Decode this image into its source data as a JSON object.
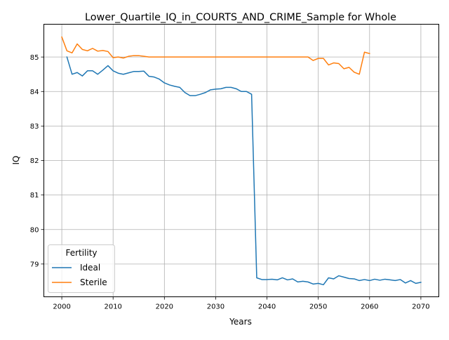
{
  "chart_data": {
    "type": "line",
    "title": "Lower_Quartile_IQ_in_COURTS_AND_CRIME_Sample for Whole",
    "xlabel": "Years",
    "ylabel": "IQ",
    "xlim": [
      1996.5,
      2073.5
    ],
    "ylim": [
      78.05,
      85.95
    ],
    "xticks": [
      2000,
      2010,
      2020,
      2030,
      2040,
      2050,
      2060,
      2070
    ],
    "yticks": [
      79,
      80,
      81,
      82,
      83,
      84,
      85
    ],
    "grid": true,
    "legend": {
      "title": "Fertility",
      "placement": "lower-left"
    },
    "series": [
      {
        "name": "Ideal",
        "color": "#1f77b4",
        "x": [
          2001,
          2002,
          2003,
          2004,
          2005,
          2006,
          2007,
          2008,
          2009,
          2010,
          2011,
          2012,
          2013,
          2014,
          2015,
          2016,
          2017,
          2018,
          2019,
          2020,
          2021,
          2022,
          2023,
          2024,
          2025,
          2026,
          2027,
          2028,
          2029,
          2030,
          2031,
          2032,
          2033,
          2034,
          2035,
          2036,
          2037,
          2038,
          2039,
          2040,
          2041,
          2042,
          2043,
          2044,
          2045,
          2046,
          2047,
          2048,
          2049,
          2050,
          2051,
          2052,
          2053,
          2054,
          2055,
          2056,
          2057,
          2058,
          2059,
          2060,
          2061,
          2062,
          2063,
          2064,
          2065,
          2066,
          2067,
          2068,
          2069,
          2070
        ],
        "values": [
          85.0,
          84.5,
          84.55,
          84.45,
          84.6,
          84.6,
          84.5,
          84.62,
          84.75,
          84.6,
          84.53,
          84.5,
          84.54,
          84.58,
          84.58,
          84.59,
          84.44,
          84.42,
          84.36,
          84.25,
          84.19,
          84.15,
          84.12,
          83.97,
          83.88,
          83.88,
          83.92,
          83.97,
          84.05,
          84.07,
          84.08,
          84.12,
          84.12,
          84.08,
          84.0,
          84.0,
          83.92,
          78.6,
          78.55,
          78.55,
          78.56,
          78.54,
          78.6,
          78.54,
          78.57,
          78.48,
          78.5,
          78.48,
          78.42,
          78.44,
          78.4,
          78.6,
          78.57,
          78.66,
          78.62,
          78.58,
          78.57,
          78.52,
          78.55,
          78.52,
          78.56,
          78.53,
          78.56,
          78.54,
          78.52,
          78.55,
          78.45,
          78.52,
          78.44,
          78.47
        ]
      },
      {
        "name": "Sterile",
        "color": "#ff7f0e",
        "x": [
          2000,
          2001,
          2002,
          2003,
          2004,
          2005,
          2006,
          2007,
          2008,
          2009,
          2010,
          2011,
          2012,
          2013,
          2014,
          2015,
          2016,
          2017,
          2018,
          2019,
          2020,
          2021,
          2022,
          2023,
          2024,
          2025,
          2026,
          2027,
          2028,
          2029,
          2030,
          2031,
          2032,
          2033,
          2034,
          2035,
          2036,
          2037,
          2038,
          2039,
          2040,
          2041,
          2042,
          2043,
          2044,
          2045,
          2046,
          2047,
          2048,
          2049,
          2050,
          2051,
          2052,
          2053,
          2054,
          2055,
          2056,
          2057,
          2058,
          2059,
          2060
        ],
        "values": [
          85.58,
          85.18,
          85.12,
          85.38,
          85.22,
          85.18,
          85.25,
          85.17,
          85.19,
          85.16,
          84.98,
          85.0,
          84.97,
          85.02,
          85.04,
          85.04,
          85.02,
          85.0,
          85.0,
          85.0,
          85.0,
          85.0,
          85.0,
          85.0,
          85.0,
          85.0,
          85.0,
          85.0,
          85.0,
          85.0,
          85.0,
          85.0,
          85.0,
          85.0,
          85.0,
          85.0,
          85.0,
          85.0,
          85.0,
          85.0,
          85.0,
          85.0,
          85.0,
          85.0,
          85.0,
          85.0,
          85.0,
          85.0,
          85.0,
          84.9,
          84.96,
          84.96,
          84.77,
          84.83,
          84.81,
          84.66,
          84.7,
          84.56,
          84.5,
          85.14,
          85.1
        ]
      }
    ]
  }
}
